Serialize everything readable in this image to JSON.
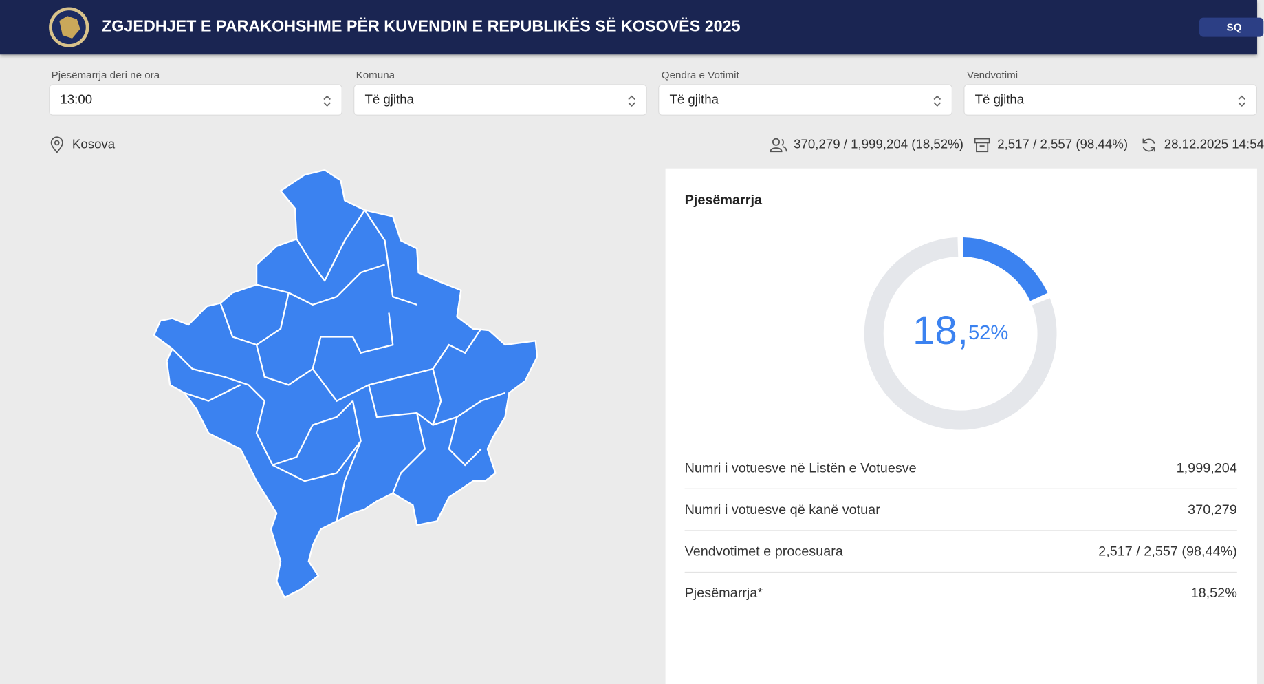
{
  "header": {
    "title": "ZGJEDHJET E PARAKOHSHME PËR KUVENDIN E REPUBLIKËS SË KOSOVËS 2025",
    "language": "SQ"
  },
  "filters": [
    {
      "label": "Pjesëmarrja deri në ora",
      "value": "13:00"
    },
    {
      "label": "Komuna",
      "value": "Të gjitha"
    },
    {
      "label": "Qendra e Votimit",
      "value": "Të gjitha"
    },
    {
      "label": "Vendvotimi",
      "value": "Të gjitha"
    }
  ],
  "location": "Kosova",
  "stats": {
    "voters": "370,279 / 1,999,204 (18,52%)",
    "stations": "2,517 / 2,557 (98,44%)",
    "updated": "28.12.2025 14:54"
  },
  "panel": {
    "title": "Pjesëmarrja",
    "donut": {
      "integer": "18,",
      "fraction": "52%",
      "percent": 18.52
    },
    "rows": [
      {
        "label": "Numri i votuesve në Listën e Votuesve",
        "value": "1,999,204"
      },
      {
        "label": "Numri i votuesve që kanë votuar",
        "value": "370,279"
      },
      {
        "label": "Vendvotimet e procesuara",
        "value": "2,517 / 2,557 (98,44%)"
      },
      {
        "label": "Pjesëmarrja*",
        "value": "18,52%"
      }
    ]
  }
}
